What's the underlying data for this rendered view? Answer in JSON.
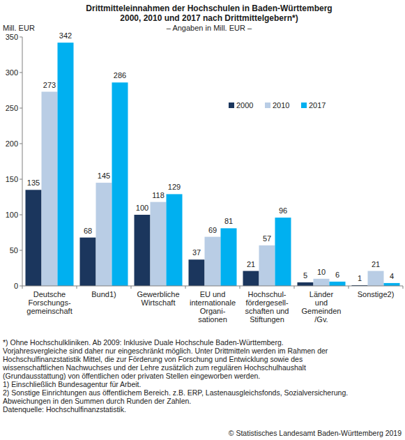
{
  "chart_data": {
    "type": "bar",
    "title": [
      "Drittmitteleinnahmen der Hochschulen in Baden-Württemberg",
      "2000, 2010 und 2017 nach Drittmittelgebern*)"
    ],
    "subtitle": "– Angaben in Mill. EUR –",
    "y_label": "Mill. EUR",
    "categories": [
      "Deutsche\nForschungs-\ngemeinschaft",
      "Bund1)",
      "Gewerbliche\nWirtschaft",
      "EU und\ninternationale\nOrgani-\nsationen",
      "Hochschul-\nfördergesell-\nschaften und\nStiftungen",
      "Länder\nund\nGemeinden\n/Gv.",
      "Sonstige2)"
    ],
    "series": [
      {
        "name": "2000",
        "color": "#1b365d",
        "values": [
          135,
          68,
          100,
          37,
          21,
          5,
          1
        ]
      },
      {
        "name": "2010",
        "color": "#b9cde5",
        "values": [
          273,
          145,
          118,
          69,
          57,
          10,
          21
        ]
      },
      {
        "name": "2017",
        "color": "#00b0f0",
        "values": [
          342,
          286,
          129,
          81,
          96,
          6,
          4
        ]
      }
    ],
    "ylim": [
      0,
      350
    ],
    "yticks": [
      0,
      50,
      100,
      150,
      200,
      250,
      300,
      350
    ],
    "grid": false,
    "data_labels": true,
    "legend": "upper right",
    "notes": [
      "*) Ohne Hochschulkliniken. Ab 2009: Inklusive Duale Hochschule Baden-Württemberg.",
      "Vorjahresvergleiche sind daher nur eingeschränkt möglich. Unter Drittmitteln werden im Rahmen der",
      "Hochschulfinanzstatistik Mittel, die zur Förderung von Forschung und Entwicklung sowie des",
      "wissenschaftlichen Nachwuchses und der Lehre zusätzlich zum regulären Hochschulhaushalt",
      "(Grundausstattung) von öffentlichen oder privaten Stellen eingeworben werden.",
      "1) Einschließlich Bundesagentur für Arbeit.",
      "2) Sonstige Einrichtungen aus öffentlichem Bereich. z.B. ERP, Lastenausgleichsfonds, Sozialversicherung.",
      "Abweichungen in den Summen durch Runden der Zahlen.",
      "Datenquelle: Hochschulfinanzstatistik."
    ],
    "source": "© Statistisches Landesamt Baden-Württemberg 2019"
  }
}
